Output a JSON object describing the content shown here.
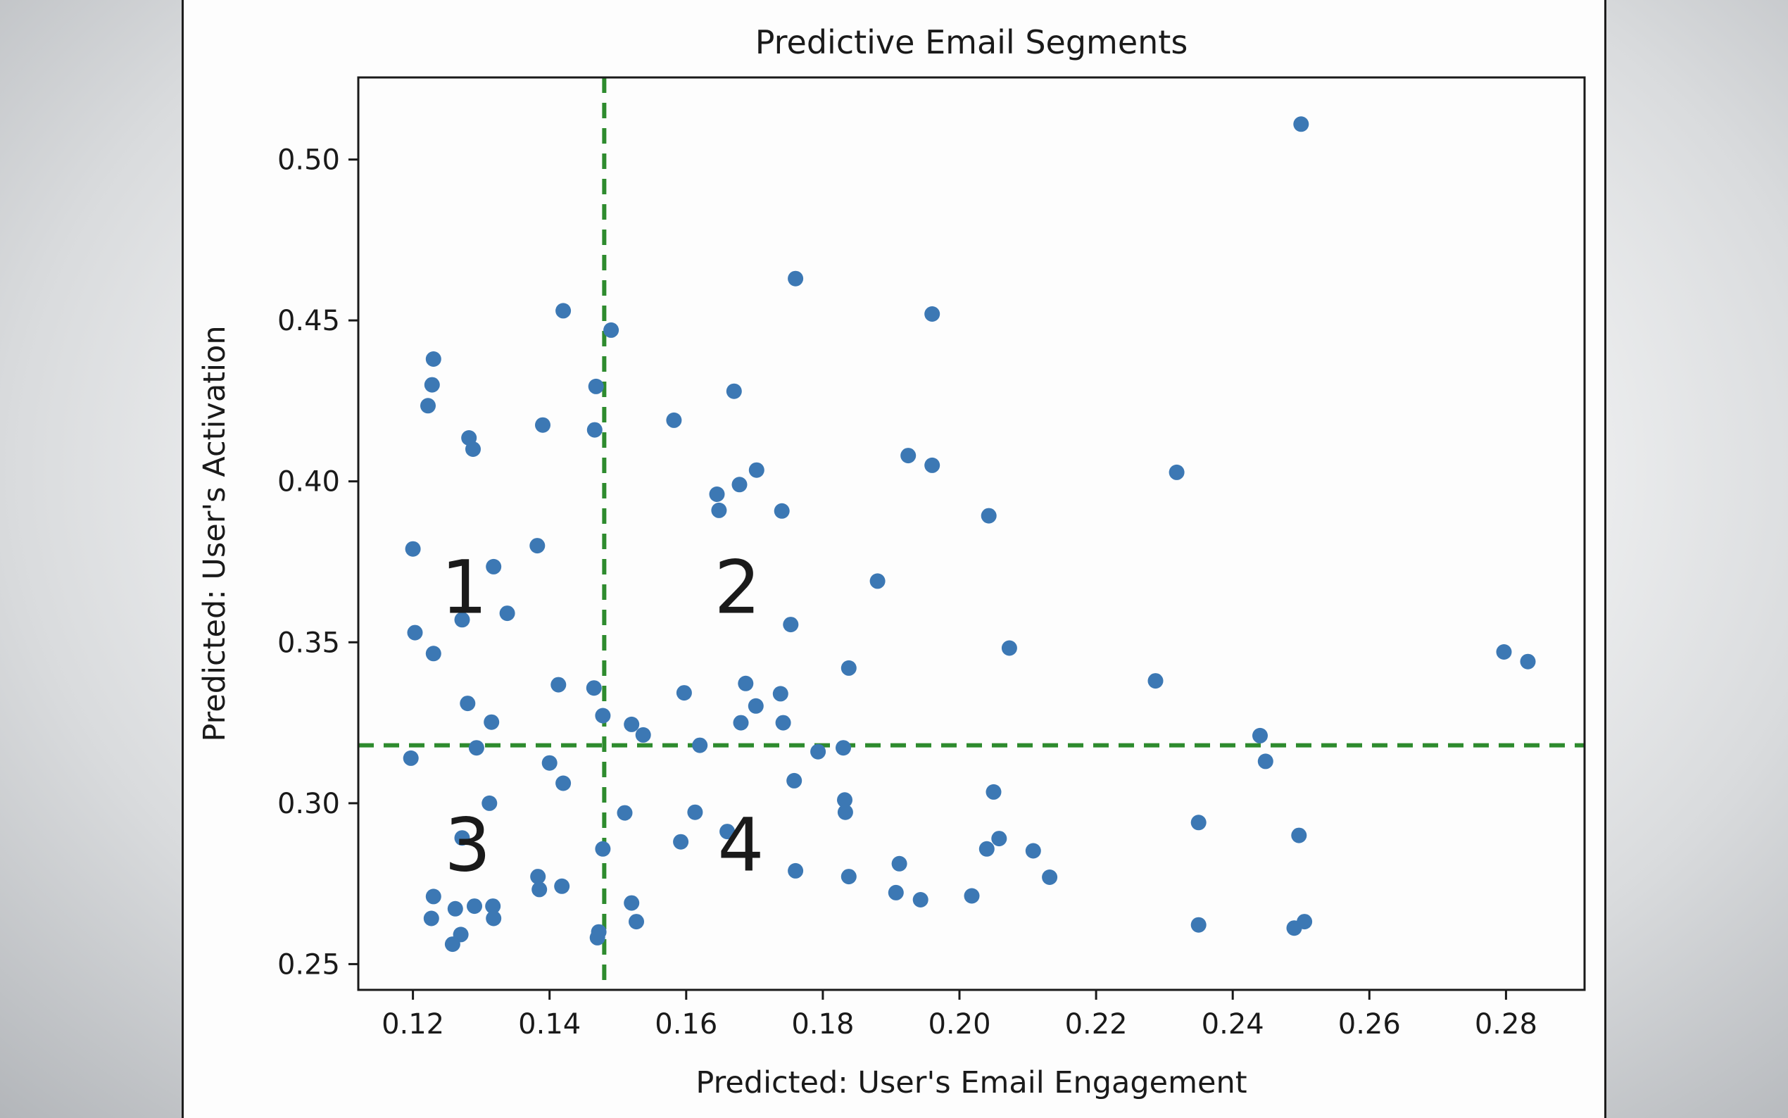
{
  "page": {
    "background_center": "#ffffff",
    "background_edge": "#b3b6ba",
    "figure_background": "#fdfdfd"
  },
  "chart_data": {
    "type": "scatter",
    "title": "Predictive Email Segments",
    "xlabel": "Predicted: User's Email Engagement",
    "ylabel": "Predicted: User's Activation",
    "xlim": [
      0.112,
      0.2915
    ],
    "ylim": [
      0.242,
      0.5255
    ],
    "x_ticks": [
      0.12,
      0.14,
      0.16,
      0.18,
      0.2,
      0.22,
      0.24,
      0.26,
      0.28
    ],
    "y_ticks": [
      0.25,
      0.3,
      0.35,
      0.4,
      0.45,
      0.5
    ],
    "grid": false,
    "legend": "none",
    "point_color": "#3c78b4",
    "threshold_color": "#2e8b2e",
    "threshold_x": 0.148,
    "threshold_y": 0.318,
    "quadrant_label_color": "#e8392f",
    "quadrant_labels": [
      {
        "text": "1",
        "x": 0.1275,
        "y": 0.367
      },
      {
        "text": "2",
        "x": 0.1675,
        "y": 0.367
      },
      {
        "text": "3",
        "x": 0.128,
        "y": 0.287
      },
      {
        "text": "4",
        "x": 0.168,
        "y": 0.287
      }
    ],
    "points": [
      [
        0.25,
        0.511
      ],
      [
        0.176,
        0.463
      ],
      [
        0.142,
        0.453
      ],
      [
        0.196,
        0.452
      ],
      [
        0.149,
        0.447
      ],
      [
        0.123,
        0.438
      ],
      [
        0.1228,
        0.43
      ],
      [
        0.1468,
        0.4295
      ],
      [
        0.167,
        0.428
      ],
      [
        0.1222,
        0.4235
      ],
      [
        0.1582,
        0.419
      ],
      [
        0.139,
        0.4175
      ],
      [
        0.1466,
        0.416
      ],
      [
        0.1282,
        0.4135
      ],
      [
        0.1288,
        0.41
      ],
      [
        0.1925,
        0.408
      ],
      [
        0.196,
        0.405
      ],
      [
        0.1703,
        0.4035
      ],
      [
        0.2318,
        0.4028
      ],
      [
        0.1678,
        0.399
      ],
      [
        0.1645,
        0.396
      ],
      [
        0.1648,
        0.391
      ],
      [
        0.174,
        0.3908
      ],
      [
        0.2043,
        0.3893
      ],
      [
        0.12,
        0.379
      ],
      [
        0.1382,
        0.38
      ],
      [
        0.1318,
        0.3735
      ],
      [
        0.1338,
        0.359
      ],
      [
        0.1272,
        0.357
      ],
      [
        0.1203,
        0.353
      ],
      [
        0.1753,
        0.3555
      ],
      [
        0.123,
        0.3465
      ],
      [
        0.188,
        0.369
      ],
      [
        0.2073,
        0.3482
      ],
      [
        0.2797,
        0.347
      ],
      [
        0.2832,
        0.344
      ],
      [
        0.2287,
        0.338
      ],
      [
        0.1838,
        0.342
      ],
      [
        0.1597,
        0.3343
      ],
      [
        0.1687,
        0.3372
      ],
      [
        0.1738,
        0.334
      ],
      [
        0.1413,
        0.3368
      ],
      [
        0.1465,
        0.3358
      ],
      [
        0.128,
        0.331
      ],
      [
        0.1478,
        0.3272
      ],
      [
        0.1315,
        0.3252
      ],
      [
        0.152,
        0.3245
      ],
      [
        0.168,
        0.325
      ],
      [
        0.1702,
        0.3302
      ],
      [
        0.1742,
        0.325
      ],
      [
        0.162,
        0.318
      ],
      [
        0.1537,
        0.3212
      ],
      [
        0.1293,
        0.3172
      ],
      [
        0.1197,
        0.314
      ],
      [
        0.14,
        0.3125
      ],
      [
        0.1793,
        0.316
      ],
      [
        0.183,
        0.3172
      ],
      [
        0.244,
        0.321
      ],
      [
        0.2448,
        0.313
      ],
      [
        0.1758,
        0.307
      ],
      [
        0.142,
        0.3062
      ],
      [
        0.205,
        0.3035
      ],
      [
        0.1832,
        0.301
      ],
      [
        0.1833,
        0.2972
      ],
      [
        0.1312,
        0.3
      ],
      [
        0.1613,
        0.2972
      ],
      [
        0.151,
        0.297
      ],
      [
        0.166,
        0.2912
      ],
      [
        0.1272,
        0.2892
      ],
      [
        0.2058,
        0.289
      ],
      [
        0.235,
        0.294
      ],
      [
        0.2497,
        0.29
      ],
      [
        0.204,
        0.2858
      ],
      [
        0.2108,
        0.2852
      ],
      [
        0.1478,
        0.2858
      ],
      [
        0.1592,
        0.288
      ],
      [
        0.1912,
        0.2812
      ],
      [
        0.176,
        0.279
      ],
      [
        0.1838,
        0.2772
      ],
      [
        0.2132,
        0.277
      ],
      [
        0.1383,
        0.2772
      ],
      [
        0.1385,
        0.2732
      ],
      [
        0.1418,
        0.2742
      ],
      [
        0.1907,
        0.2722
      ],
      [
        0.1943,
        0.27
      ],
      [
        0.2018,
        0.2712
      ],
      [
        0.123,
        0.271
      ],
      [
        0.1262,
        0.2672
      ],
      [
        0.129,
        0.268
      ],
      [
        0.1317,
        0.268
      ],
      [
        0.1318,
        0.2642
      ],
      [
        0.1227,
        0.2642
      ],
      [
        0.152,
        0.269
      ],
      [
        0.1527,
        0.2632
      ],
      [
        0.235,
        0.2622
      ],
      [
        0.249,
        0.2612
      ],
      [
        0.2505,
        0.2632
      ],
      [
        0.127,
        0.2592
      ],
      [
        0.1258,
        0.2562
      ],
      [
        0.1472,
        0.26
      ],
      [
        0.147,
        0.2582
      ]
    ]
  }
}
